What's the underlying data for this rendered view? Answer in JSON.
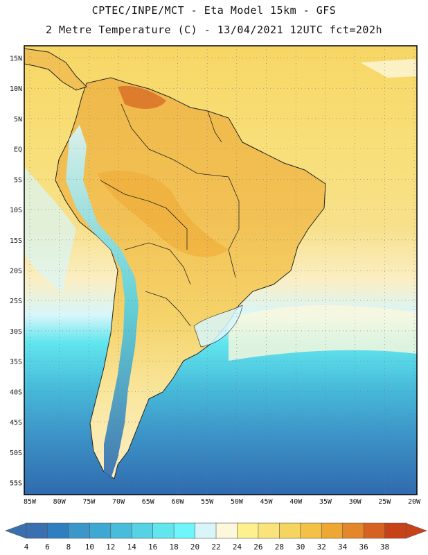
{
  "title_line1": "CPTEC/INPE/MCT -  Eta Model 15km - GFS",
  "title_line2": "2 Metre Temperature (C) - 13/04/2021 12UTC fct=202h",
  "lat_labels": [
    "15N",
    "10N",
    "5N",
    "EQ",
    "5S",
    "10S",
    "15S",
    "20S",
    "25S",
    "30S",
    "35S",
    "40S",
    "45S",
    "50S",
    "55S"
  ],
  "lon_labels": [
    "85W",
    "80W",
    "75W",
    "70W",
    "65W",
    "60W",
    "55W",
    "50W",
    "45W",
    "40W",
    "35W",
    "30W",
    "25W",
    "20W"
  ],
  "colorbar": {
    "labels": [
      "4",
      "6",
      "8",
      "10",
      "12",
      "14",
      "16",
      "18",
      "20",
      "22",
      "24",
      "26",
      "28",
      "30",
      "32",
      "34",
      "36",
      "38"
    ],
    "colors": [
      "#3a6fb0",
      "#2f7fc0",
      "#3d96c9",
      "#3fa8d2",
      "#48bcdb",
      "#55d2e3",
      "#62e6ee",
      "#6ff6fb",
      "#d8f6fa",
      "#fdf7dc",
      "#fdf08e",
      "#f9e37a",
      "#f5d55f",
      "#f2c145",
      "#eea731",
      "#e4862a",
      "#d66222",
      "#c84218"
    ]
  },
  "map": {
    "ocean_fields": [
      {
        "color": "#f7dc70",
        "band": "north"
      },
      {
        "color": "#fdf7dc",
        "band": "subtropical"
      },
      {
        "color": "#62e6ee",
        "band": "midlatitude"
      },
      {
        "color": "#3a6fb0",
        "band": "south"
      }
    ]
  }
}
